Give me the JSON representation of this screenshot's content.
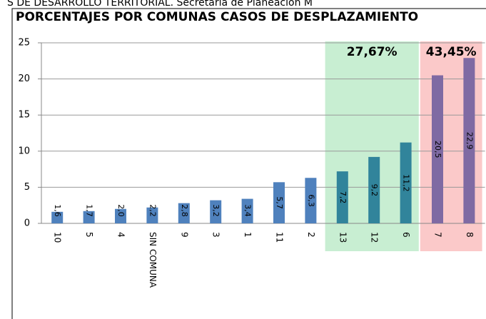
{
  "caption": "S DE DESARROLLO TERRITORIAL. Secretaría de Planeación M",
  "chart_data": {
    "type": "bar",
    "title": "PORCENTAJES POR COMUNAS CASOS DE DESPLAZAMIENTO",
    "categories": [
      "10",
      "5",
      "4",
      "SIN COMUNA",
      "9",
      "3",
      "1",
      "11",
      "2",
      "13",
      "12",
      "6",
      "7",
      "8"
    ],
    "values": [
      1.6,
      1.7,
      2.0,
      2.2,
      2.8,
      3.2,
      3.4,
      5.7,
      6.3,
      7.2,
      9.2,
      11.2,
      20.5,
      22.9
    ],
    "value_labels": [
      "1,6",
      "1,7",
      "2,0",
      "2,2",
      "2,8",
      "3,2",
      "3,4",
      "5,7",
      "6,3",
      "7,2",
      "9,2",
      "11,2",
      "20,5",
      "22,9"
    ],
    "colors": [
      "#4f81bd",
      "#4f81bd",
      "#4f81bd",
      "#4f81bd",
      "#4f81bd",
      "#4f81bd",
      "#4f81bd",
      "#4f81bd",
      "#4f81bd",
      "#31849b",
      "#31849b",
      "#31849b",
      "#7f6aa3",
      "#7f6aa3"
    ],
    "ylim": [
      0,
      25
    ],
    "yticks": [
      0,
      5,
      10,
      15,
      20,
      25
    ],
    "grid": true,
    "regions": [
      {
        "label": "27,67%",
        "from": "13",
        "to": "6",
        "color": "#c8eed2"
      },
      {
        "label": "43,45%",
        "from": "7",
        "to": "8",
        "color": "#fbc9c9"
      }
    ]
  }
}
